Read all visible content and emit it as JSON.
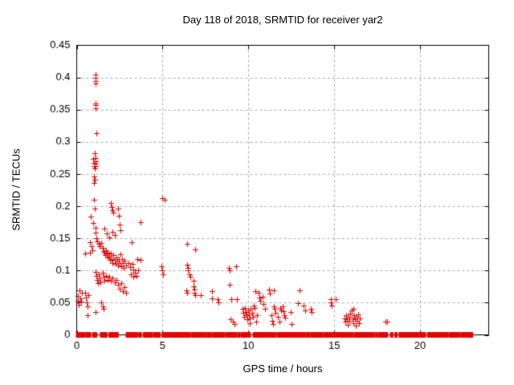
{
  "chart_data": {
    "type": "scatter",
    "title": "Day 118 of 2018, SRMTID for receiver yar2",
    "xlabel": "GPS time / hours",
    "ylabel": "SRMTID / TECUs",
    "xlim": [
      0,
      24
    ],
    "ylim": [
      0,
      0.45
    ],
    "grid": true,
    "legend": null,
    "marker": "plus",
    "marker_color": "#e60000",
    "grid_color": "#a8a8a8",
    "axis_color": "#000000",
    "xticks": [
      {
        "value": 0,
        "label": "0"
      },
      {
        "value": 5,
        "label": "5"
      },
      {
        "value": 10,
        "label": "10"
      },
      {
        "value": 15,
        "label": "15"
      },
      {
        "value": 20,
        "label": "20"
      }
    ],
    "yticks": [
      {
        "value": 0.0,
        "label": "0"
      },
      {
        "value": 0.05,
        "label": "0.05"
      },
      {
        "value": 0.1,
        "label": "0.1"
      },
      {
        "value": 0.15,
        "label": "0.15"
      },
      {
        "value": 0.2,
        "label": "0.2"
      },
      {
        "value": 0.25,
        "label": "0.25"
      },
      {
        "value": 0.3,
        "label": "0.3"
      },
      {
        "value": 0.35,
        "label": "0.35"
      },
      {
        "value": 0.4,
        "label": "0.4"
      },
      {
        "value": 0.45,
        "label": "0.45"
      }
    ],
    "points": [
      [
        1.08,
        0.405
      ],
      [
        1.1,
        0.399
      ],
      [
        1.12,
        0.394
      ],
      [
        1.09,
        0.391
      ],
      [
        1.1,
        0.36
      ],
      [
        1.12,
        0.357
      ],
      [
        1.11,
        0.352
      ],
      [
        1.13,
        0.314
      ],
      [
        1.05,
        0.282
      ],
      [
        1.08,
        0.275
      ],
      [
        1.1,
        0.27
      ],
      [
        1.12,
        0.266
      ],
      [
        1.09,
        0.262
      ],
      [
        0.95,
        0.274
      ],
      [
        1.0,
        0.268
      ],
      [
        1.02,
        0.262
      ],
      [
        1.05,
        0.259
      ],
      [
        1.0,
        0.246
      ],
      [
        1.04,
        0.241
      ],
      [
        1.02,
        0.236
      ],
      [
        1.0,
        0.21
      ],
      [
        1.05,
        0.196
      ],
      [
        2.0,
        0.205
      ],
      [
        2.05,
        0.199
      ],
      [
        2.1,
        0.194
      ],
      [
        2.15,
        0.19
      ],
      [
        0.82,
        0.184
      ],
      [
        0.95,
        0.174
      ],
      [
        1.1,
        0.167
      ],
      [
        1.1,
        0.159
      ],
      [
        3.7,
        0.175
      ],
      [
        2.4,
        0.196
      ],
      [
        2.45,
        0.185
      ],
      [
        2.5,
        0.172
      ],
      [
        2.55,
        0.163
      ],
      [
        1.6,
        0.165
      ],
      [
        1.75,
        0.158
      ],
      [
        1.9,
        0.152
      ],
      [
        2.1,
        0.16
      ],
      [
        2.2,
        0.155
      ],
      [
        0.78,
        0.144
      ],
      [
        0.85,
        0.138
      ],
      [
        0.92,
        0.131
      ],
      [
        0.75,
        0.128
      ],
      [
        0.5,
        0.127
      ],
      [
        1.15,
        0.15
      ],
      [
        1.2,
        0.145
      ],
      [
        1.3,
        0.142
      ],
      [
        1.35,
        0.138
      ],
      [
        1.45,
        0.143
      ],
      [
        1.5,
        0.135
      ],
      [
        1.55,
        0.13
      ],
      [
        1.6,
        0.128
      ],
      [
        1.65,
        0.124
      ],
      [
        1.7,
        0.132
      ],
      [
        1.75,
        0.126
      ],
      [
        1.8,
        0.12
      ],
      [
        1.85,
        0.128
      ],
      [
        1.9,
        0.122
      ],
      [
        1.95,
        0.116
      ],
      [
        2.0,
        0.126
      ],
      [
        2.05,
        0.118
      ],
      [
        2.1,
        0.112
      ],
      [
        2.15,
        0.124
      ],
      [
        2.2,
        0.116
      ],
      [
        2.25,
        0.11
      ],
      [
        2.3,
        0.12
      ],
      [
        2.35,
        0.114
      ],
      [
        2.4,
        0.108
      ],
      [
        2.45,
        0.118
      ],
      [
        2.5,
        0.112
      ],
      [
        2.55,
        0.125
      ],
      [
        2.6,
        0.106
      ],
      [
        2.65,
        0.118
      ],
      [
        2.7,
        0.112
      ],
      [
        2.75,
        0.104
      ],
      [
        2.8,
        0.115
      ],
      [
        2.9,
        0.108
      ],
      [
        3.0,
        0.112
      ],
      [
        3.1,
        0.105
      ],
      [
        3.2,
        0.144
      ],
      [
        3.25,
        0.11
      ],
      [
        3.3,
        0.102
      ],
      [
        3.55,
        0.118
      ],
      [
        3.7,
        0.116
      ],
      [
        3.6,
        0.1
      ],
      [
        3.4,
        0.096
      ],
      [
        3.5,
        0.092
      ],
      [
        3.3,
        0.09
      ],
      [
        3.15,
        0.094
      ],
      [
        1.1,
        0.098
      ],
      [
        1.15,
        0.092
      ],
      [
        1.2,
        0.085
      ],
      [
        1.25,
        0.08
      ],
      [
        1.3,
        0.094
      ],
      [
        1.35,
        0.088
      ],
      [
        1.4,
        0.082
      ],
      [
        1.5,
        0.096
      ],
      [
        1.55,
        0.09
      ],
      [
        1.6,
        0.084
      ],
      [
        1.7,
        0.092
      ],
      [
        1.8,
        0.086
      ],
      [
        1.9,
        0.09
      ],
      [
        2.0,
        0.084
      ],
      [
        2.1,
        0.088
      ],
      [
        2.2,
        0.082
      ],
      [
        2.3,
        0.086
      ],
      [
        2.4,
        0.078
      ],
      [
        2.5,
        0.072
      ],
      [
        2.6,
        0.08
      ],
      [
        2.7,
        0.068
      ],
      [
        2.8,
        0.074
      ],
      [
        2.9,
        0.065
      ],
      [
        1.45,
        0.05
      ],
      [
        1.5,
        0.044
      ],
      [
        1.55,
        0.04
      ],
      [
        1.1,
        0.036
      ],
      [
        0.65,
        0.031
      ],
      [
        0.05,
        0.06
      ],
      [
        0.08,
        0.053
      ],
      [
        0.1,
        0.047
      ],
      [
        0.15,
        0.069
      ],
      [
        0.2,
        0.057
      ],
      [
        0.25,
        0.052
      ],
      [
        0.3,
        0.065
      ],
      [
        0.5,
        0.065
      ],
      [
        0.55,
        0.058
      ],
      [
        0.6,
        0.05
      ],
      [
        0.65,
        0.044
      ],
      [
        0.7,
        0.062
      ],
      [
        5.0,
        0.213
      ],
      [
        5.1,
        0.21
      ],
      [
        4.95,
        0.106
      ],
      [
        5.0,
        0.1
      ],
      [
        5.05,
        0.094
      ],
      [
        6.45,
        0.142
      ],
      [
        6.9,
        0.133
      ],
      [
        6.45,
        0.109
      ],
      [
        6.5,
        0.104
      ],
      [
        6.5,
        0.1
      ],
      [
        6.55,
        0.094
      ],
      [
        6.6,
        0.09
      ],
      [
        6.4,
        0.069
      ],
      [
        6.45,
        0.065
      ],
      [
        6.8,
        0.084
      ],
      [
        6.8,
        0.075
      ],
      [
        6.85,
        0.071
      ],
      [
        6.85,
        0.066
      ],
      [
        6.9,
        0.062
      ],
      [
        7.25,
        0.062
      ],
      [
        7.9,
        0.068
      ],
      [
        7.9,
        0.057
      ],
      [
        8.2,
        0.056
      ],
      [
        8.25,
        0.05
      ],
      [
        8.85,
        0.104
      ],
      [
        8.9,
        0.1
      ],
      [
        9.3,
        0.106
      ],
      [
        8.9,
        0.078
      ],
      [
        9.0,
        0.056
      ],
      [
        9.35,
        0.055
      ],
      [
        8.95,
        0.024
      ],
      [
        9.1,
        0.02
      ],
      [
        9.2,
        0.017
      ],
      [
        9.65,
        0.04
      ],
      [
        9.7,
        0.034
      ],
      [
        9.75,
        0.028
      ],
      [
        9.8,
        0.042
      ],
      [
        9.85,
        0.036
      ],
      [
        9.9,
        0.03
      ],
      [
        9.95,
        0.024
      ],
      [
        10.0,
        0.038
      ],
      [
        10.05,
        0.032
      ],
      [
        10.1,
        0.026
      ],
      [
        10.1,
        0.018
      ],
      [
        10.15,
        0.04
      ],
      [
        10.2,
        0.034
      ],
      [
        10.25,
        0.028
      ],
      [
        10.3,
        0.046
      ],
      [
        10.35,
        0.042
      ],
      [
        10.4,
        0.068
      ],
      [
        10.45,
        0.02
      ],
      [
        10.5,
        0.03
      ],
      [
        10.6,
        0.065
      ],
      [
        10.65,
        0.058
      ],
      [
        10.7,
        0.053
      ],
      [
        10.85,
        0.059
      ],
      [
        10.9,
        0.048
      ],
      [
        10.95,
        0.04
      ],
      [
        11.2,
        0.071
      ],
      [
        11.25,
        0.064
      ],
      [
        11.5,
        0.069
      ],
      [
        11.5,
        0.044
      ],
      [
        11.55,
        0.04
      ],
      [
        11.35,
        0.03
      ],
      [
        11.4,
        0.022
      ],
      [
        11.45,
        0.017
      ],
      [
        11.6,
        0.034
      ],
      [
        11.7,
        0.028
      ],
      [
        11.8,
        0.021
      ],
      [
        11.85,
        0.042
      ],
      [
        11.9,
        0.038
      ],
      [
        12.0,
        0.044
      ],
      [
        12.05,
        0.037
      ],
      [
        12.1,
        0.03
      ],
      [
        12.15,
        0.027
      ],
      [
        12.45,
        0.036
      ],
      [
        12.5,
        0.017
      ],
      [
        12.9,
        0.049
      ],
      [
        13.0,
        0.069
      ],
      [
        13.3,
        0.038
      ],
      [
        13.2,
        0.046
      ],
      [
        13.65,
        0.04
      ],
      [
        13.7,
        0.036
      ],
      [
        14.8,
        0.055
      ],
      [
        14.8,
        0.05
      ],
      [
        14.85,
        0.046
      ],
      [
        15.1,
        0.056
      ],
      [
        15.6,
        0.026
      ],
      [
        15.65,
        0.02
      ],
      [
        15.7,
        0.03
      ],
      [
        15.75,
        0.024
      ],
      [
        15.8,
        0.016
      ],
      [
        15.85,
        0.028
      ],
      [
        15.9,
        0.022
      ],
      [
        15.95,
        0.033
      ],
      [
        16.0,
        0.038
      ],
      [
        16.05,
        0.026
      ],
      [
        16.1,
        0.04
      ],
      [
        16.1,
        0.018
      ],
      [
        16.15,
        0.03
      ],
      [
        16.2,
        0.024
      ],
      [
        16.25,
        0.014
      ],
      [
        16.3,
        0.028
      ],
      [
        16.35,
        0.022
      ],
      [
        16.4,
        0.032
      ],
      [
        16.45,
        0.018
      ],
      [
        16.5,
        0.025
      ],
      [
        18.0,
        0.021
      ],
      [
        18.1,
        0.021
      ]
    ],
    "zero_line_segments": [
      [
        0.0,
        0.45
      ],
      [
        0.55,
        0.8
      ],
      [
        0.95,
        1.15
      ],
      [
        1.4,
        1.75
      ],
      [
        1.9,
        2.0
      ],
      [
        2.05,
        2.15
      ],
      [
        2.2,
        2.4
      ],
      [
        2.9,
        3.3
      ],
      [
        3.35,
        3.5
      ],
      [
        3.6,
        3.75
      ],
      [
        3.9,
        4.4
      ],
      [
        4.5,
        4.85
      ],
      [
        5.0,
        6.6
      ],
      [
        6.7,
        7.5
      ],
      [
        7.6,
        7.8
      ],
      [
        7.9,
        8.6
      ],
      [
        8.7,
        9.3
      ],
      [
        9.4,
        9.5
      ],
      [
        9.6,
        10.1
      ],
      [
        10.3,
        11.6
      ],
      [
        11.7,
        12.5
      ],
      [
        12.55,
        13.3
      ],
      [
        13.4,
        13.55
      ],
      [
        13.65,
        14.3
      ],
      [
        14.4,
        15.5
      ],
      [
        15.55,
        16.1
      ],
      [
        16.2,
        17.3
      ],
      [
        17.4,
        17.5
      ],
      [
        17.6,
        18.1
      ],
      [
        18.3,
        18.4
      ],
      [
        18.55,
        18.65
      ],
      [
        18.8,
        20.3
      ],
      [
        20.45,
        21.6
      ],
      [
        21.7,
        22.3
      ],
      [
        22.4,
        23.05
      ]
    ]
  }
}
